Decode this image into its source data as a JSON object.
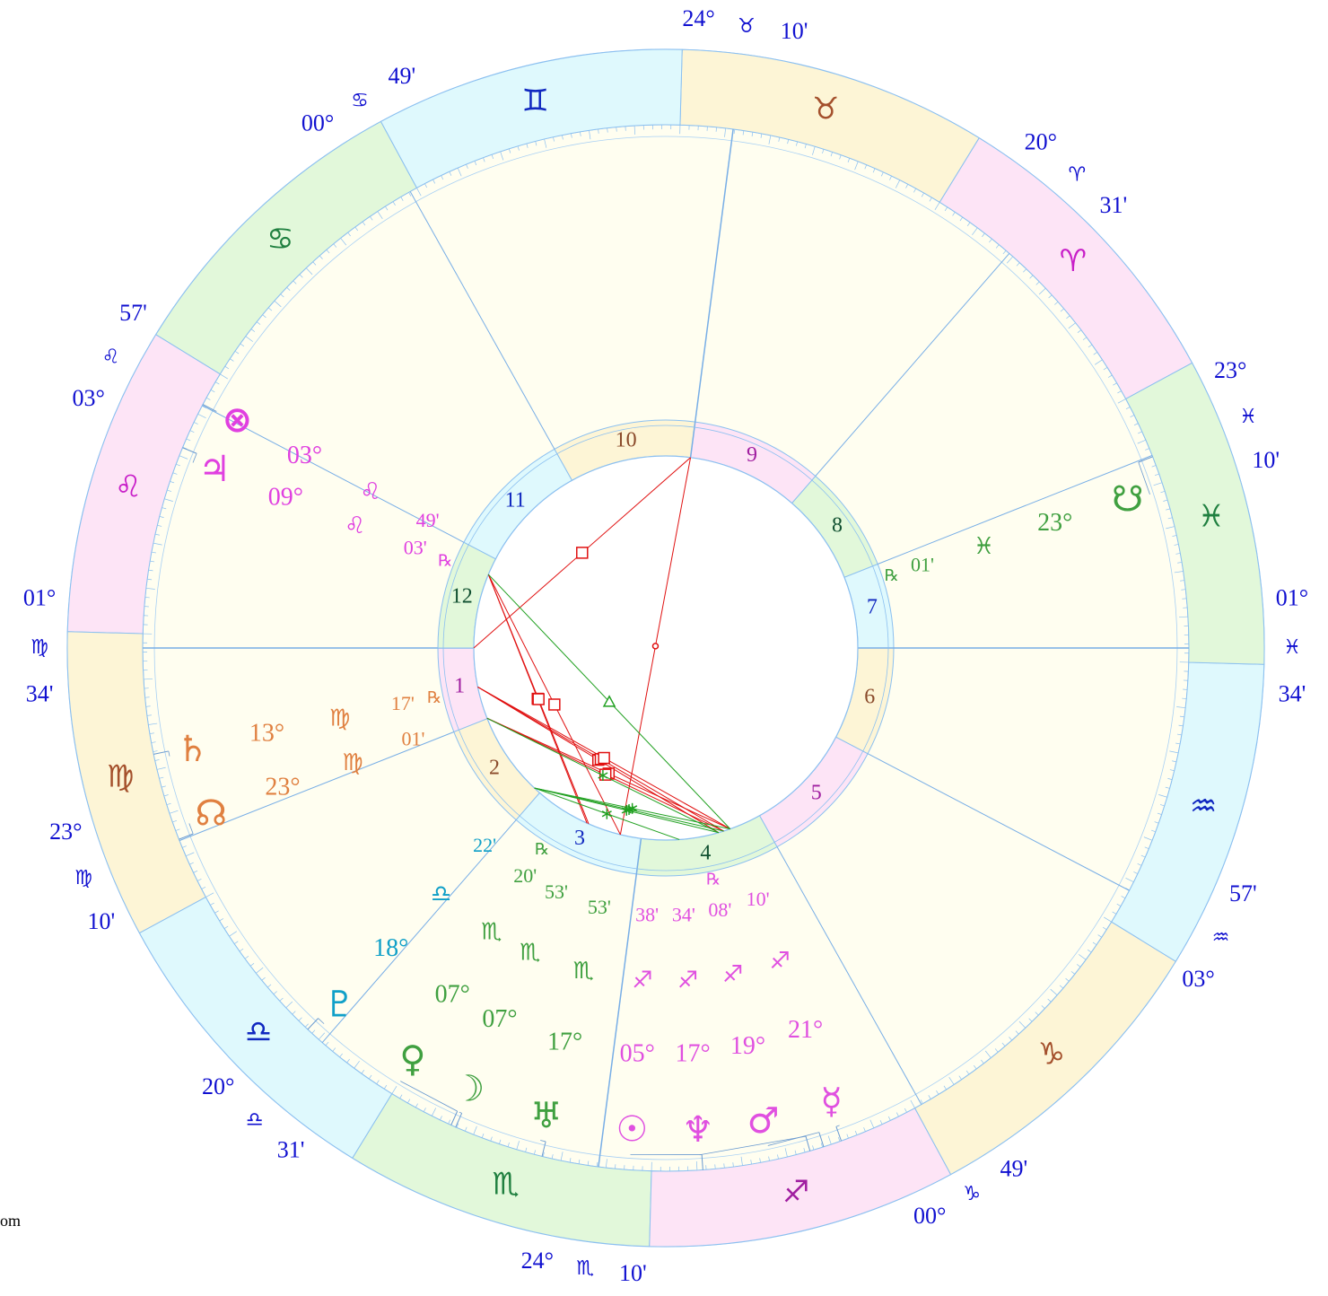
{
  "zodiac": [
    {
      "glyph": "♈",
      "fill": "#fde4f6",
      "color": "#c81ec8"
    },
    {
      "glyph": "♉",
      "fill": "#fdf5d6",
      "color": "#a4502c"
    },
    {
      "glyph": "♊",
      "fill": "#dff9fd",
      "color": "#1028c0"
    },
    {
      "glyph": "♋",
      "fill": "#e2f8da",
      "color": "#208040"
    },
    {
      "glyph": "♌",
      "fill": "#fde4f6",
      "color": "#c81ec8"
    },
    {
      "glyph": "♍",
      "fill": "#fdf5d6",
      "color": "#a4502c"
    },
    {
      "glyph": "♎",
      "fill": "#dff9fd",
      "color": "#1028c0"
    },
    {
      "glyph": "♏",
      "fill": "#e2f8da",
      "color": "#208040"
    },
    {
      "glyph": "♐",
      "fill": "#fde4f6",
      "color": "#a01ea0"
    },
    {
      "glyph": "♑",
      "fill": "#fdf5d6",
      "color": "#a4502c"
    },
    {
      "glyph": "♒",
      "fill": "#dff9fd",
      "color": "#1028c0"
    },
    {
      "glyph": "♓",
      "fill": "#e2f8da",
      "color": "#208040"
    }
  ],
  "houses": [
    {
      "number": "1",
      "degree": "01°",
      "sign": "♍",
      "minutes": "34'"
    },
    {
      "number": "2",
      "degree": "23°",
      "sign": "♍",
      "minutes": "10'"
    },
    {
      "number": "3",
      "degree": "20°",
      "sign": "♎",
      "minutes": "31'"
    },
    {
      "number": "4",
      "degree": "24°",
      "sign": "♏",
      "minutes": "10'"
    },
    {
      "number": "5",
      "degree": "00°",
      "sign": "♑",
      "minutes": "49'"
    },
    {
      "number": "6",
      "degree": "03°",
      "sign": "♒",
      "minutes": "57'"
    },
    {
      "number": "7",
      "degree": "01°",
      "sign": "♓",
      "minutes": "34'"
    },
    {
      "number": "8",
      "degree": "23°",
      "sign": "♓",
      "minutes": "10'"
    },
    {
      "number": "9",
      "degree": "20°",
      "sign": "♈",
      "minutes": "31'"
    },
    {
      "number": "10",
      "degree": "24°",
      "sign": "♉",
      "minutes": "10'"
    },
    {
      "number": "11",
      "degree": "00°",
      "sign": "♋",
      "minutes": "49'"
    },
    {
      "number": "12",
      "degree": "03°",
      "sign": "♌",
      "minutes": "57'"
    }
  ],
  "planets": [
    {
      "glyph": "⊗",
      "degree": "03°",
      "sign": "♌",
      "minutes": "49'",
      "color": "#e040e0"
    },
    {
      "glyph": "♃",
      "degree": "09°",
      "sign": "♌",
      "minutes": "03'",
      "retrograde": "℞",
      "color": "#e040e0"
    },
    {
      "glyph": "♄",
      "degree": "13°",
      "sign": "♍",
      "minutes": "17'",
      "retrograde": "℞",
      "color": "#e08040"
    },
    {
      "glyph": "☊",
      "degree": "23°",
      "sign": "♍",
      "minutes": "01'",
      "color": "#e08040"
    },
    {
      "glyph": "♇",
      "degree": "18°",
      "sign": "♎",
      "minutes": "22'",
      "color": "#10a0c8"
    },
    {
      "glyph": "♀",
      "degree": "07°",
      "sign": "♏",
      "minutes": "20'",
      "retrograde": "℞",
      "color": "#40a040"
    },
    {
      "glyph": "☽",
      "degree": "07°",
      "sign": "♏",
      "minutes": "53'",
      "color": "#40a040"
    },
    {
      "glyph": "♅",
      "degree": "17°",
      "sign": "♏",
      "minutes": "53'",
      "color": "#40a040"
    },
    {
      "glyph": "☉",
      "degree": "05°",
      "sign": "♐",
      "minutes": "38'",
      "color": "#e050e0"
    },
    {
      "glyph": "♆",
      "degree": "17°",
      "sign": "♐",
      "minutes": "34'",
      "color": "#e050e0"
    },
    {
      "glyph": "♂",
      "degree": "19°",
      "sign": "♐",
      "minutes": "08'",
      "retrograde": "℞",
      "color": "#e050e0"
    },
    {
      "glyph": "☿",
      "degree": "21°",
      "sign": "♐",
      "minutes": "10'",
      "color": "#e050e0"
    },
    {
      "glyph": "☋",
      "degree": "23°",
      "sign": "♓",
      "minutes": "01'",
      "retrograde": "℞",
      "color": "#40a040"
    }
  ],
  "footer": "om"
}
